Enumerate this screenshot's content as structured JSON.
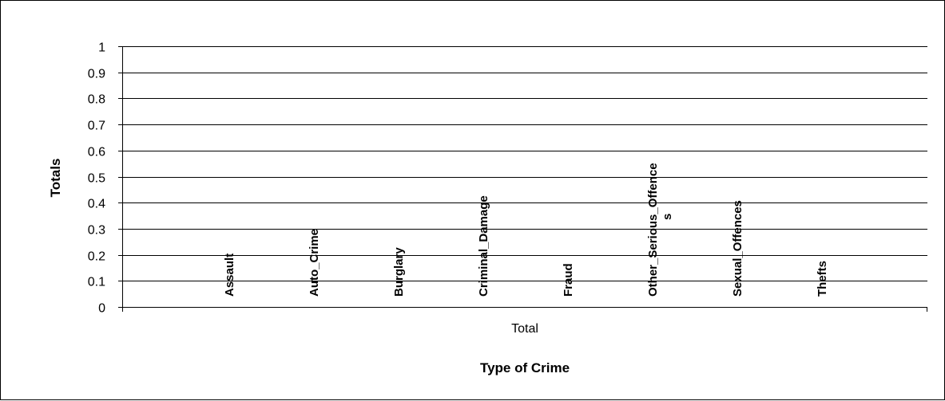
{
  "chart_data": {
    "type": "bar",
    "title": "",
    "xlabel": "Type of Crime",
    "ylabel": "Totals",
    "x_categories": [
      "Total"
    ],
    "series": [
      {
        "name": "Assault",
        "values": [
          0
        ]
      },
      {
        "name": "Auto_Crime",
        "values": [
          0
        ]
      },
      {
        "name": "Burglary",
        "values": [
          0
        ]
      },
      {
        "name": "Criminal_Damage",
        "values": [
          0
        ]
      },
      {
        "name": "Fraud",
        "values": [
          0
        ]
      },
      {
        "name": "Other_Serious_Offence s",
        "values": [
          0
        ]
      },
      {
        "name": "Sexual_Offences",
        "values": [
          0
        ]
      },
      {
        "name": "Thefts",
        "values": [
          0
        ]
      }
    ],
    "ylim": [
      0,
      1
    ],
    "yticks": [
      "0",
      "0.1",
      "0.2",
      "0.3",
      "0.4",
      "0.5",
      "0.6",
      "0.7",
      "0.8",
      "0.9",
      "1"
    ],
    "grid": true,
    "legend": "none"
  }
}
